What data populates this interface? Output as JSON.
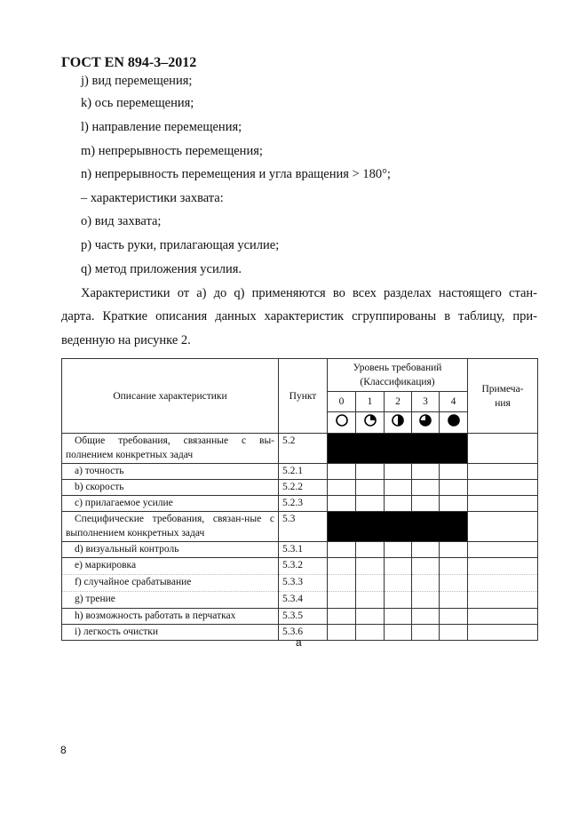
{
  "header": "ГОСТ EN 894-3–2012",
  "list_items": [
    "j) вид перемещения;",
    "k) ось перемещения;",
    "l) направление перемещения;",
    "m) непрерывность перемещения;",
    "n) непрерывность перемещения и угла вращения > 180°;",
    "– характеристики захвата:",
    "o) вид захвата;",
    "p) часть руки, прилагающая усилие;",
    "q) метод приложения усилия."
  ],
  "paragraph_lines": [
    "Характеристики от a) до q) применяются во всех разделах настоящего стан-",
    "дарта. Краткие описания данных характеристик сгруппированы в таблицу, при-",
    "веденную на  рисунке 2."
  ],
  "table": {
    "col_description": "Описание характеристики",
    "col_clause": "Пункт",
    "col_level": "Уровень требований (Классификация)",
    "levels": [
      "0",
      "1",
      "2",
      "3",
      "4"
    ],
    "level_icons": [
      "circle-empty-icon",
      "circle-quarter-icon",
      "circle-half-icon",
      "circle-three-quarter-icon",
      "circle-full-icon"
    ],
    "col_notes": "Примеча-ния",
    "rows": [
      {
        "description": "Общие требования, связанные с вы-полнением конкретных задач",
        "clause": "5.2",
        "group": true
      },
      {
        "description": "a) точность",
        "clause": "5.2.1"
      },
      {
        "description": "b) скорость",
        "clause": "5.2.2"
      },
      {
        "description": "c) прилагаемое усилие",
        "clause": "5.2.3"
      },
      {
        "description": "Специфические требования, связан-ные с выполнением конкретных задач",
        "clause": "5.3",
        "group": true
      },
      {
        "description": "d) визуальный контроль",
        "clause": "5.3.1"
      },
      {
        "description": "e) маркировка",
        "clause": "5.3.2"
      },
      {
        "description": "f) случайное срабатывание",
        "clause": "5.3.3"
      },
      {
        "description": "g) трение",
        "clause": "5.3.4"
      },
      {
        "description": "h) возможность работать в перчатках",
        "clause": "5.3.5"
      },
      {
        "description": "i) легкость очистки",
        "clause": "5.3.6"
      }
    ]
  },
  "caption": "a",
  "page_number": "8"
}
